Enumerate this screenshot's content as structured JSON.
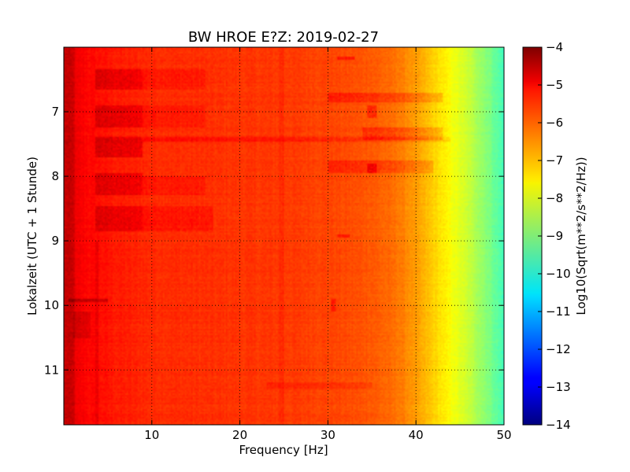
{
  "chart_data": {
    "type": "heatmap",
    "title": "BW HROE E?Z: 2019-02-27",
    "xlabel": "Frequency [Hz]",
    "ylabel": "Lokalzeit (UTC + 1 Stunde)",
    "colorbar_label": "Log10(Sqrt(m**2/s**2/Hz))",
    "colormap": "jet",
    "xlim": [
      0,
      50
    ],
    "ylim": [
      6.0,
      11.85
    ],
    "y_inverted": true,
    "clim": [
      -14,
      -4
    ],
    "grid": true,
    "x_ticks": [
      {
        "value": 10,
        "label": "10"
      },
      {
        "value": 20,
        "label": "20"
      },
      {
        "value": 30,
        "label": "30"
      },
      {
        "value": 40,
        "label": "40"
      },
      {
        "value": 50,
        "label": "50"
      }
    ],
    "y_ticks": [
      {
        "value": 7,
        "label": "7"
      },
      {
        "value": 8,
        "label": "8"
      },
      {
        "value": 9,
        "label": "9"
      },
      {
        "value": 10,
        "label": "10"
      },
      {
        "value": 11,
        "label": "11"
      }
    ],
    "colorbar_ticks": [
      {
        "value": -4,
        "label": "−4"
      },
      {
        "value": -5,
        "label": "−5"
      },
      {
        "value": -6,
        "label": "−6"
      },
      {
        "value": -7,
        "label": "−7"
      },
      {
        "value": -8,
        "label": "−8"
      },
      {
        "value": -9,
        "label": "−9"
      },
      {
        "value": -10,
        "label": "−10"
      },
      {
        "value": -11,
        "label": "−11"
      },
      {
        "value": -12,
        "label": "−12"
      },
      {
        "value": -13,
        "label": "−13"
      },
      {
        "value": -14,
        "label": "−14"
      }
    ],
    "frequency_profile": [
      {
        "freq": 0,
        "value": -5.0
      },
      {
        "freq": 1,
        "value": -5.1
      },
      {
        "freq": 3,
        "value": -5.3
      },
      {
        "freq": 6,
        "value": -5.5
      },
      {
        "freq": 10,
        "value": -5.65
      },
      {
        "freq": 15,
        "value": -5.7
      },
      {
        "freq": 20,
        "value": -5.75
      },
      {
        "freq": 25,
        "value": -5.8
      },
      {
        "freq": 30,
        "value": -5.9
      },
      {
        "freq": 35,
        "value": -6.1
      },
      {
        "freq": 38,
        "value": -6.4
      },
      {
        "freq": 40,
        "value": -6.8
      },
      {
        "freq": 42,
        "value": -7.3
      },
      {
        "freq": 44,
        "value": -7.8
      },
      {
        "freq": 46,
        "value": -8.3
      },
      {
        "freq": 48,
        "value": -8.9
      },
      {
        "freq": 50,
        "value": -9.6
      }
    ],
    "bands": [
      {
        "t0": 6.35,
        "t1": 6.65,
        "f0": 3.5,
        "f1": 9,
        "delta": 0.45
      },
      {
        "t0": 6.35,
        "t1": 6.65,
        "f0": 9,
        "f1": 16,
        "delta": 0.2
      },
      {
        "t0": 6.9,
        "t1": 7.25,
        "f0": 3.5,
        "f1": 9,
        "delta": 0.5
      },
      {
        "t0": 6.9,
        "t1": 7.25,
        "f0": 9,
        "f1": 16,
        "delta": 0.2
      },
      {
        "t0": 7.4,
        "t1": 7.7,
        "f0": 3.5,
        "f1": 9,
        "delta": 0.5
      },
      {
        "t0": 7.4,
        "t1": 7.47,
        "f0": 9,
        "f1": 44,
        "delta": 0.3
      },
      {
        "t0": 7.95,
        "t1": 8.3,
        "f0": 3.5,
        "f1": 9,
        "delta": 0.45
      },
      {
        "t0": 8.0,
        "t1": 8.3,
        "f0": 9,
        "f1": 16,
        "delta": 0.2
      },
      {
        "t0": 8.45,
        "t1": 8.85,
        "f0": 3.5,
        "f1": 9,
        "delta": 0.45
      },
      {
        "t0": 8.45,
        "t1": 8.85,
        "f0": 9,
        "f1": 17,
        "delta": 0.25
      },
      {
        "t0": 6.7,
        "t1": 6.85,
        "f0": 30,
        "f1": 43,
        "delta": 0.4
      },
      {
        "t0": 7.25,
        "t1": 7.45,
        "f0": 34,
        "f1": 43,
        "delta": 0.4
      },
      {
        "t0": 7.75,
        "t1": 7.95,
        "f0": 30,
        "f1": 42,
        "delta": 0.35
      },
      {
        "t0": 7.8,
        "t1": 7.95,
        "f0": 34.5,
        "f1": 35.5,
        "delta": 0.6
      },
      {
        "t0": 6.9,
        "t1": 7.1,
        "f0": 34.5,
        "f1": 35.5,
        "delta": 0.5
      },
      {
        "t0": 6.15,
        "t1": 6.2,
        "f0": 31,
        "f1": 33,
        "delta": 0.5
      },
      {
        "t0": 9.9,
        "t1": 9.96,
        "f0": 0.5,
        "f1": 5,
        "delta": 0.6
      },
      {
        "t0": 10.1,
        "t1": 10.5,
        "f0": 1,
        "f1": 3,
        "delta": 0.3
      },
      {
        "t0": 9.9,
        "t1": 10.1,
        "f0": 30.3,
        "f1": 30.9,
        "delta": 0.4
      },
      {
        "t0": 11.2,
        "t1": 11.3,
        "f0": 23,
        "f1": 35,
        "delta": 0.2
      },
      {
        "t0": 8.9,
        "t1": 8.96,
        "f0": 31,
        "f1": 32.5,
        "delta": 0.45
      },
      {
        "t0": 6.0,
        "t1": 11.85,
        "f0": 0,
        "f1": 1.2,
        "delta": 0.35
      },
      {
        "t0": 9.0,
        "t1": 11.85,
        "f0": 3.6,
        "f1": 4.0,
        "delta": 0.3
      },
      {
        "t0": 6.0,
        "t1": 11.85,
        "f0": 24.5,
        "f1": 25.0,
        "delta": 0.15
      }
    ]
  }
}
